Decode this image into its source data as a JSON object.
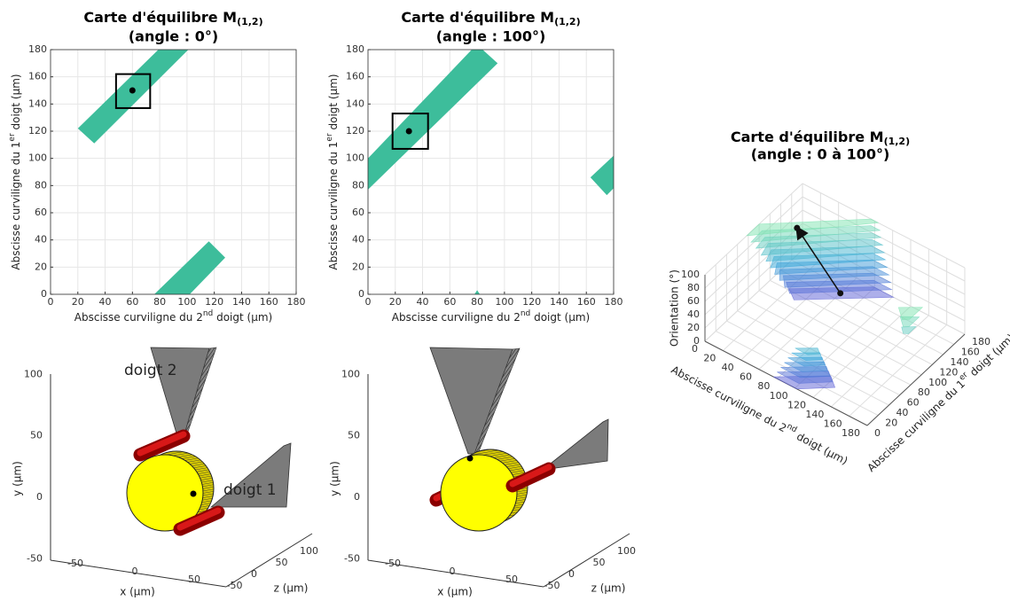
{
  "chart_data": [
    {
      "type": "map",
      "title": "Carte d'équilibre M",
      "title_subscript": "(1,2)",
      "subtitle": "(angle : 0°)",
      "xlabel": [
        "Abscisse curviligne du 2",
        "nd",
        " doigt (µm)"
      ],
      "ylabel": [
        "Abscisse curviligne du 1",
        "er",
        " doigt (µm)"
      ],
      "xlim": [
        0,
        180
      ],
      "ylim": [
        0,
        180
      ],
      "xticks": [
        0,
        20,
        40,
        60,
        80,
        100,
        120,
        140,
        160,
        180
      ],
      "yticks": [
        0,
        20,
        40,
        60,
        80,
        100,
        120,
        140,
        160,
        180
      ],
      "grid": true,
      "color": "#3dbd9b",
      "regions": [
        [
          [
            20,
            122
          ],
          [
            79,
            180
          ],
          [
            101,
            180
          ],
          [
            32,
            111
          ]
        ],
        [
          [
            76,
            0
          ],
          [
            116,
            39
          ],
          [
            128,
            27
          ],
          [
            102,
            0
          ]
        ]
      ],
      "marker": {
        "x": 60,
        "y": 150
      },
      "window": {
        "x": [
          48,
          73
        ],
        "y": [
          137,
          162
        ]
      }
    },
    {
      "type": "map",
      "title": "Carte d'équilibre M",
      "title_subscript": "(1,2)",
      "subtitle": "(angle : 100°)",
      "xlabel": [
        "Abscisse curviligne du 2",
        "nd",
        " doigt (µm)"
      ],
      "ylabel": [
        "Abscisse curviligne du 1",
        "er",
        " doigt (µm)"
      ],
      "xlim": [
        0,
        180
      ],
      "ylim": [
        0,
        180
      ],
      "xticks": [
        0,
        20,
        40,
        60,
        80,
        100,
        120,
        140,
        160,
        180
      ],
      "yticks": [
        0,
        20,
        40,
        60,
        80,
        100,
        120,
        140,
        160,
        180
      ],
      "grid": true,
      "color": "#3dbd9b",
      "regions": [
        [
          [
            0,
            77
          ],
          [
            0,
            100
          ],
          [
            76,
            180
          ],
          [
            84,
            180
          ],
          [
            95,
            170
          ]
        ],
        [
          [
            163,
            86
          ],
          [
            180,
            102
          ],
          [
            180,
            78
          ],
          [
            175,
            73
          ]
        ],
        [
          [
            78,
            0
          ],
          [
            80,
            3
          ],
          [
            82,
            0
          ]
        ]
      ],
      "marker": {
        "x": 30,
        "y": 120
      },
      "window": {
        "x": [
          18,
          44
        ],
        "y": [
          107,
          133
        ]
      }
    },
    {
      "type": "scene",
      "xlabel": "x (µm)",
      "ylabel": "y (µm)",
      "zlabel": "z (µm)",
      "xticks": [
        -50,
        0,
        50
      ],
      "yticks": [
        -50,
        0,
        50,
        100
      ],
      "zticks": [
        -50,
        0,
        50,
        100
      ],
      "annotations": [
        "doigt 2",
        "doigt 1"
      ]
    },
    {
      "type": "scene",
      "xlabel": "x (µm)",
      "ylabel": "y (µm)",
      "zlabel": "z (µm)",
      "xticks": [
        -50,
        0,
        50
      ],
      "yticks": [
        -50,
        0,
        50,
        100
      ],
      "zticks": [
        -50,
        0,
        50,
        100
      ]
    },
    {
      "type": "stack3d",
      "title": "Carte d'équilibre M",
      "title_subscript": "(1,2)",
      "subtitle": "(angle : 0 à 100°)",
      "xlabel": [
        "Abscisse curviligne du 2",
        "nd",
        " doigt (µm)"
      ],
      "ylabel": [
        "Abscisse curviligne du 1",
        "er",
        " doigt (µm)"
      ],
      "zlabel": "Orientation (°)",
      "xlim": [
        0,
        180
      ],
      "ylim": [
        0,
        180
      ],
      "zlim": [
        0,
        100
      ],
      "xticks": [
        0,
        20,
        40,
        60,
        80,
        100,
        120,
        140,
        160,
        180
      ],
      "yticks": [
        0,
        20,
        40,
        60,
        80,
        100,
        120,
        140,
        160,
        180
      ],
      "zticks": [
        0,
        20,
        40,
        60,
        80,
        100
      ],
      "colormap": [
        "#5c5fd6",
        "#36a8d8",
        "#7ee3b0"
      ],
      "groups": [
        [
          {
            "z": 0,
            "polygon": [
              [
                76,
                0
              ],
              [
                116,
                39
              ],
              [
                128,
                27
              ],
              [
                102,
                0
              ]
            ]
          },
          {
            "z": 10,
            "polygon": [
              [
                80,
                0
              ],
              [
                116,
                35
              ],
              [
                127,
                24
              ],
              [
                104,
                0
              ]
            ]
          },
          {
            "z": 20,
            "polygon": [
              [
                84,
                0
              ],
              [
                116,
                31
              ],
              [
                126,
                21
              ],
              [
                106,
                0
              ]
            ]
          },
          {
            "z": 30,
            "polygon": [
              [
                88,
                0
              ],
              [
                116,
                27
              ],
              [
                125,
                18
              ],
              [
                108,
                0
              ]
            ]
          },
          {
            "z": 40,
            "polygon": [
              [
                92,
                0
              ],
              [
                116,
                23
              ],
              [
                124,
                15
              ],
              [
                110,
                0
              ]
            ]
          },
          {
            "z": 50,
            "polygon": [
              [
                96,
                0
              ],
              [
                116,
                19
              ],
              [
                123,
                12
              ],
              [
                112,
                0
              ]
            ]
          },
          {
            "z": 60,
            "polygon": [
              [
                100,
                0
              ],
              [
                116,
                15
              ],
              [
                122,
                9
              ],
              [
                114,
                0
              ]
            ]
          }
        ],
        [
          {
            "z": 0,
            "polygon": [
              [
                20,
                122
              ],
              [
                79,
                180
              ],
              [
                101,
                180
              ],
              [
                32,
                111
              ]
            ]
          },
          {
            "z": 10,
            "polygon": [
              [
                18,
                120
              ],
              [
                79,
                180
              ],
              [
                99,
                180
              ],
              [
                29,
                108
              ]
            ]
          },
          {
            "z": 20,
            "polygon": [
              [
                16,
                118
              ],
              [
                78,
                180
              ],
              [
                98,
                180
              ],
              [
                26,
                104
              ]
            ]
          },
          {
            "z": 30,
            "polygon": [
              [
                14,
                115
              ],
              [
                78,
                180
              ],
              [
                96,
                180
              ],
              [
                22,
                101
              ]
            ]
          },
          {
            "z": 40,
            "polygon": [
              [
                12,
                113
              ],
              [
                78,
                180
              ],
              [
                94,
                180
              ],
              [
                19,
                97
              ]
            ]
          },
          {
            "z": 50,
            "polygon": [
              [
                10,
                111
              ],
              [
                78,
                180
              ],
              [
                92,
                180
              ],
              [
                16,
                94
              ]
            ]
          },
          {
            "z": 60,
            "polygon": [
              [
                8,
                109
              ],
              [
                77,
                180
              ],
              [
                91,
                180
              ],
              [
                13,
                91
              ]
            ]
          },
          {
            "z": 70,
            "polygon": [
              [
                6,
                107
              ],
              [
                77,
                180
              ],
              [
                89,
                180
              ],
              [
                10,
                87
              ]
            ]
          },
          {
            "z": 80,
            "polygon": [
              [
                4,
                104
              ],
              [
                77,
                180
              ],
              [
                87,
                180
              ],
              [
                6,
                84
              ]
            ]
          },
          {
            "z": 90,
            "polygon": [
              [
                2,
                102
              ],
              [
                76,
                180
              ],
              [
                86,
                180
              ],
              [
                3,
                80
              ]
            ]
          },
          {
            "z": 100,
            "polygon": [
              [
                0,
                100
              ],
              [
                76,
                180
              ],
              [
                84,
                180
              ],
              [
                0,
                77
              ]
            ]
          }
        ],
        [
          {
            "z": 80,
            "polygon": [
              [
                170,
                80
              ],
              [
                180,
                90
              ],
              [
                180,
                76
              ],
              [
                176,
                73
              ]
            ]
          },
          {
            "z": 90,
            "polygon": [
              [
                166,
                84
              ],
              [
                180,
                96
              ],
              [
                180,
                77
              ],
              [
                176,
                73
              ]
            ]
          },
          {
            "z": 100,
            "polygon": [
              [
                163,
                86
              ],
              [
                180,
                102
              ],
              [
                180,
                78
              ],
              [
                175,
                73
              ]
            ]
          }
        ]
      ],
      "arrow": {
        "from": [
          60,
          150,
          0
        ],
        "to": [
          30,
          120,
          100
        ]
      }
    }
  ]
}
